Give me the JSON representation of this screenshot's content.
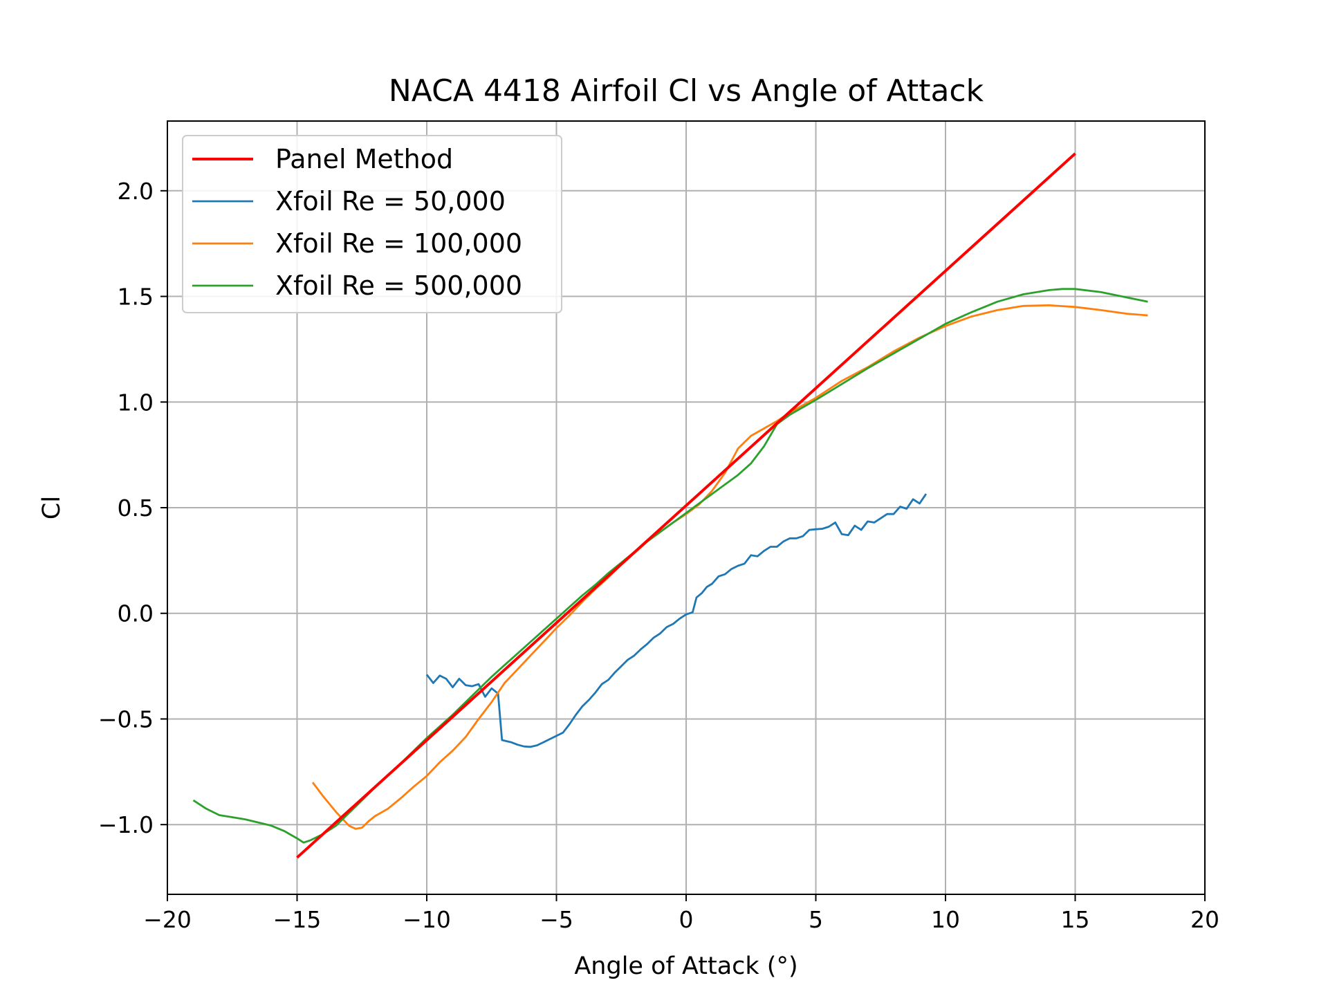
{
  "chart_data": {
    "type": "line",
    "title": "NACA 4418 Airfoil Cl vs Angle of Attack",
    "xlabel": "Angle of Attack (°)",
    "ylabel": "Cl",
    "xlim": [
      -20,
      20
    ],
    "ylim": [
      -1.33,
      2.33
    ],
    "xticks": [
      -20,
      -15,
      -10,
      -5,
      0,
      5,
      10,
      15,
      20
    ],
    "xtick_labels": [
      "−20",
      "−15",
      "−10",
      "−5",
      "0",
      "5",
      "10",
      "15",
      "20"
    ],
    "yticks": [
      -1.0,
      -0.5,
      0.0,
      0.5,
      1.0,
      1.5,
      2.0
    ],
    "ytick_labels": [
      "−1.0",
      "−0.5",
      "0.0",
      "0.5",
      "1.0",
      "1.5",
      "2.0"
    ],
    "grid": true,
    "legend_position": "top-left",
    "series": [
      {
        "name": "Panel Method",
        "color": "#ff0000",
        "width": "thick",
        "points": [
          [
            -15,
            -1.156
          ],
          [
            15,
            2.176
          ]
        ]
      },
      {
        "name": "Xfoil Re = 50,000",
        "color": "#1f77b4",
        "width": "normal",
        "points": [
          [
            -10,
            -0.29
          ],
          [
            -9.75,
            -0.33
          ],
          [
            -9.5,
            -0.295
          ],
          [
            -9.25,
            -0.31
          ],
          [
            -9.0,
            -0.35
          ],
          [
            -8.75,
            -0.31
          ],
          [
            -8.5,
            -0.34
          ],
          [
            -8.25,
            -0.345
          ],
          [
            -8.0,
            -0.335
          ],
          [
            -7.75,
            -0.395
          ],
          [
            -7.5,
            -0.355
          ],
          [
            -7.25,
            -0.38
          ],
          [
            -7.1,
            -0.6
          ],
          [
            -6.75,
            -0.61
          ],
          [
            -6.5,
            -0.622
          ],
          [
            -6.25,
            -0.63
          ],
          [
            -6.0,
            -0.632
          ],
          [
            -5.75,
            -0.625
          ],
          [
            -5.5,
            -0.61
          ],
          [
            -5.25,
            -0.595
          ],
          [
            -5.0,
            -0.58
          ],
          [
            -4.75,
            -0.565
          ],
          [
            -4.5,
            -0.525
          ],
          [
            -4.25,
            -0.48
          ],
          [
            -4.0,
            -0.44
          ],
          [
            -3.75,
            -0.41
          ],
          [
            -3.5,
            -0.375
          ],
          [
            -3.25,
            -0.335
          ],
          [
            -3.0,
            -0.315
          ],
          [
            -2.75,
            -0.28
          ],
          [
            -2.5,
            -0.25
          ],
          [
            -2.25,
            -0.22
          ],
          [
            -2.0,
            -0.2
          ],
          [
            -1.75,
            -0.17
          ],
          [
            -1.5,
            -0.145
          ],
          [
            -1.25,
            -0.115
          ],
          [
            -1.0,
            -0.095
          ],
          [
            -0.75,
            -0.065
          ],
          [
            -0.5,
            -0.05
          ],
          [
            -0.25,
            -0.025
          ],
          [
            0.0,
            -0.005
          ],
          [
            0.25,
            0.005
          ],
          [
            0.4,
            0.075
          ],
          [
            0.6,
            0.095
          ],
          [
            0.8,
            0.125
          ],
          [
            1.0,
            0.14
          ],
          [
            1.25,
            0.175
          ],
          [
            1.5,
            0.185
          ],
          [
            1.75,
            0.21
          ],
          [
            2.0,
            0.225
          ],
          [
            2.25,
            0.235
          ],
          [
            2.5,
            0.275
          ],
          [
            2.75,
            0.27
          ],
          [
            3.0,
            0.295
          ],
          [
            3.25,
            0.315
          ],
          [
            3.5,
            0.315
          ],
          [
            3.75,
            0.34
          ],
          [
            4.0,
            0.355
          ],
          [
            4.25,
            0.355
          ],
          [
            4.5,
            0.365
          ],
          [
            4.75,
            0.395
          ],
          [
            5.0,
            0.398
          ],
          [
            5.25,
            0.4
          ],
          [
            5.5,
            0.41
          ],
          [
            5.75,
            0.43
          ],
          [
            6.0,
            0.375
          ],
          [
            6.25,
            0.37
          ],
          [
            6.5,
            0.415
          ],
          [
            6.75,
            0.395
          ],
          [
            7.0,
            0.435
          ],
          [
            7.25,
            0.43
          ],
          [
            7.5,
            0.45
          ],
          [
            7.75,
            0.47
          ],
          [
            8.0,
            0.47
          ],
          [
            8.25,
            0.505
          ],
          [
            8.5,
            0.495
          ],
          [
            8.75,
            0.54
          ],
          [
            9.0,
            0.52
          ],
          [
            9.25,
            0.565
          ]
        ]
      },
      {
        "name": "Xfoil Re = 100,000",
        "color": "#ff7f0e",
        "width": "normal",
        "points": [
          [
            -14.4,
            -0.8
          ],
          [
            -14.0,
            -0.865
          ],
          [
            -13.5,
            -0.94
          ],
          [
            -13.0,
            -1.005
          ],
          [
            -12.75,
            -1.02
          ],
          [
            -12.5,
            -1.015
          ],
          [
            -12.25,
            -0.985
          ],
          [
            -12.0,
            -0.96
          ],
          [
            -11.5,
            -0.925
          ],
          [
            -11.0,
            -0.875
          ],
          [
            -10.5,
            -0.82
          ],
          [
            -10.0,
            -0.77
          ],
          [
            -9.5,
            -0.705
          ],
          [
            -9.0,
            -0.65
          ],
          [
            -8.5,
            -0.585
          ],
          [
            -8.0,
            -0.5
          ],
          [
            -7.5,
            -0.42
          ],
          [
            -7.0,
            -0.33
          ],
          [
            -6.5,
            -0.265
          ],
          [
            -6.0,
            -0.2
          ],
          [
            -5.5,
            -0.135
          ],
          [
            -5.0,
            -0.07
          ],
          [
            -4.5,
            -0.01
          ],
          [
            -4.0,
            0.055
          ],
          [
            -3.5,
            0.115
          ],
          [
            -3.0,
            0.17
          ],
          [
            -2.5,
            0.23
          ],
          [
            -2.0,
            0.285
          ],
          [
            -1.5,
            0.34
          ],
          [
            -1.0,
            0.385
          ],
          [
            -0.5,
            0.43
          ],
          [
            0.0,
            0.47
          ],
          [
            0.5,
            0.515
          ],
          [
            1.0,
            0.58
          ],
          [
            1.5,
            0.665
          ],
          [
            2.0,
            0.78
          ],
          [
            2.5,
            0.84
          ],
          [
            3.0,
            0.875
          ],
          [
            3.5,
            0.91
          ],
          [
            4.0,
            0.95
          ],
          [
            5.0,
            1.02
          ],
          [
            6.0,
            1.1
          ],
          [
            7.0,
            1.165
          ],
          [
            8.0,
            1.24
          ],
          [
            9.0,
            1.305
          ],
          [
            10.0,
            1.36
          ],
          [
            11.0,
            1.405
          ],
          [
            12.0,
            1.435
          ],
          [
            13.0,
            1.455
          ],
          [
            14.0,
            1.458
          ],
          [
            15.0,
            1.45
          ],
          [
            16.0,
            1.435
          ],
          [
            17.0,
            1.418
          ],
          [
            17.8,
            1.41
          ]
        ]
      },
      {
        "name": "Xfoil Re = 500,000",
        "color": "#2ca02c",
        "width": "normal",
        "points": [
          [
            -19.0,
            -0.885
          ],
          [
            -18.5,
            -0.925
          ],
          [
            -18.0,
            -0.955
          ],
          [
            -17.5,
            -0.965
          ],
          [
            -17.0,
            -0.975
          ],
          [
            -16.5,
            -0.99
          ],
          [
            -16.0,
            -1.005
          ],
          [
            -15.5,
            -1.03
          ],
          [
            -15.0,
            -1.065
          ],
          [
            -14.75,
            -1.085
          ],
          [
            -14.5,
            -1.075
          ],
          [
            -14.0,
            -1.045
          ],
          [
            -13.5,
            -1.005
          ],
          [
            -13.0,
            -0.945
          ],
          [
            -12.5,
            -0.885
          ],
          [
            -12.0,
            -0.825
          ],
          [
            -11.5,
            -0.765
          ],
          [
            -11.0,
            -0.71
          ],
          [
            -10.5,
            -0.65
          ],
          [
            -10.0,
            -0.59
          ],
          [
            -9.5,
            -0.535
          ],
          [
            -9.0,
            -0.48
          ],
          [
            -8.5,
            -0.42
          ],
          [
            -8.0,
            -0.36
          ],
          [
            -7.5,
            -0.3
          ],
          [
            -7.0,
            -0.245
          ],
          [
            -6.5,
            -0.19
          ],
          [
            -6.0,
            -0.135
          ],
          [
            -5.5,
            -0.08
          ],
          [
            -5.0,
            -0.025
          ],
          [
            -4.5,
            0.03
          ],
          [
            -4.0,
            0.085
          ],
          [
            -3.5,
            0.135
          ],
          [
            -3.0,
            0.19
          ],
          [
            -2.5,
            0.24
          ],
          [
            -2.0,
            0.29
          ],
          [
            -1.5,
            0.34
          ],
          [
            -1.0,
            0.385
          ],
          [
            -0.5,
            0.43
          ],
          [
            0.0,
            0.475
          ],
          [
            0.5,
            0.52
          ],
          [
            1.0,
            0.565
          ],
          [
            1.5,
            0.61
          ],
          [
            2.0,
            0.655
          ],
          [
            2.5,
            0.71
          ],
          [
            3.0,
            0.79
          ],
          [
            3.5,
            0.895
          ],
          [
            4.0,
            0.94
          ],
          [
            5.0,
            1.01
          ],
          [
            6.0,
            1.085
          ],
          [
            7.0,
            1.16
          ],
          [
            8.0,
            1.23
          ],
          [
            9.0,
            1.3
          ],
          [
            10.0,
            1.37
          ],
          [
            11.0,
            1.425
          ],
          [
            12.0,
            1.475
          ],
          [
            13.0,
            1.51
          ],
          [
            14.0,
            1.53
          ],
          [
            14.5,
            1.535
          ],
          [
            15.0,
            1.535
          ],
          [
            16.0,
            1.52
          ],
          [
            17.0,
            1.495
          ],
          [
            17.8,
            1.475
          ]
        ]
      }
    ]
  }
}
